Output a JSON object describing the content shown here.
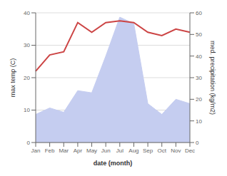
{
  "chart_data": {
    "type": "line",
    "xlabel": "date (month)",
    "ylabel": "max temp (C)",
    "y2label": "med. precipitation (kg/m2)",
    "categories": [
      "Jan",
      "Feb",
      "Mar",
      "Apr",
      "May",
      "Jun",
      "Jul",
      "Aug",
      "Sep",
      "Oct",
      "Nov",
      "Dec"
    ],
    "series": [
      {
        "type": "area",
        "axis": "y2",
        "color": "#c5cdf0",
        "values": [
          13,
          16,
          14,
          24,
          23,
          40,
          58,
          55,
          18,
          13,
          20,
          18
        ]
      },
      {
        "type": "line",
        "color": "#cc4444",
        "values": [
          22,
          27,
          28,
          37,
          34,
          37,
          37.5,
          37,
          34,
          33,
          35,
          34
        ]
      }
    ],
    "ylim": [
      0,
      40
    ],
    "yticks": [
      0,
      10,
      20,
      30,
      40
    ],
    "y2lim": [
      0,
      60
    ],
    "y2ticks": [
      0,
      10,
      20,
      30,
      40,
      50,
      60
    ],
    "grid": true
  }
}
